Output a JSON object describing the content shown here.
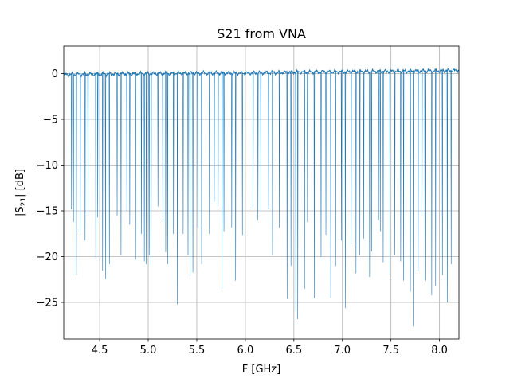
{
  "chart_data": {
    "type": "line",
    "title": "S21 from VNA",
    "xlabel": "F [GHz]",
    "ylabel_parts": {
      "before": "|S",
      "sub": "21",
      "after": "| [dB]"
    },
    "xlim": [
      4.13,
      8.2
    ],
    "ylim": [
      -29.0,
      3.0
    ],
    "x_ticks": [
      4.5,
      5.0,
      5.5,
      6.0,
      6.5,
      7.0,
      7.5,
      8.0
    ],
    "x_tick_labels": [
      "4.5",
      "5.0",
      "5.5",
      "6.0",
      "6.5",
      "7.0",
      "7.5",
      "8.0"
    ],
    "y_ticks": [
      0,
      -5,
      -10,
      -15,
      -20,
      -25
    ],
    "y_tick_labels": [
      "0",
      "−5",
      "−10",
      "−15",
      "−20",
      "−25"
    ],
    "grid": true,
    "line_color": "#1f77b4",
    "baseline_db": {
      "x": [
        4.13,
        4.5,
        5.0,
        5.5,
        6.0,
        6.5,
        7.0,
        7.5,
        8.0,
        8.2
      ],
      "y": [
        -0.1,
        -0.05,
        0.0,
        0.05,
        0.05,
        0.15,
        0.2,
        0.25,
        0.3,
        0.35
      ]
    },
    "resonances": [
      {
        "f": 4.21,
        "depth": -14.8
      },
      {
        "f": 4.23,
        "depth": -16.2
      },
      {
        "f": 4.26,
        "depth": -22.0
      },
      {
        "f": 4.3,
        "depth": -17.3
      },
      {
        "f": 4.35,
        "depth": -18.2
      },
      {
        "f": 4.38,
        "depth": -15.5
      },
      {
        "f": 4.46,
        "depth": -20.2
      },
      {
        "f": 4.48,
        "depth": -15.7
      },
      {
        "f": 4.53,
        "depth": -21.5
      },
      {
        "f": 4.56,
        "depth": -22.4
      },
      {
        "f": 4.6,
        "depth": -20.8
      },
      {
        "f": 4.68,
        "depth": -15.5
      },
      {
        "f": 4.72,
        "depth": -19.8
      },
      {
        "f": 4.78,
        "depth": -15.0
      },
      {
        "f": 4.81,
        "depth": -16.5
      },
      {
        "f": 4.87,
        "depth": -20.3
      },
      {
        "f": 4.93,
        "depth": -17.5
      },
      {
        "f": 4.96,
        "depth": -20.5
      },
      {
        "f": 4.98,
        "depth": -20.8
      },
      {
        "f": 5.01,
        "depth": -19.8
      },
      {
        "f": 5.03,
        "depth": -21.0
      },
      {
        "f": 5.1,
        "depth": -14.5
      },
      {
        "f": 5.15,
        "depth": -16.2
      },
      {
        "f": 5.18,
        "depth": -19.5
      },
      {
        "f": 5.2,
        "depth": -20.8
      },
      {
        "f": 5.26,
        "depth": -17.5
      },
      {
        "f": 5.3,
        "depth": -25.2
      },
      {
        "f": 5.36,
        "depth": -17.5
      },
      {
        "f": 5.41,
        "depth": -19.8
      },
      {
        "f": 5.43,
        "depth": -22.1
      },
      {
        "f": 5.46,
        "depth": -21.7
      },
      {
        "f": 5.51,
        "depth": -16.8
      },
      {
        "f": 5.55,
        "depth": -20.8
      },
      {
        "f": 5.63,
        "depth": -17.5
      },
      {
        "f": 5.68,
        "depth": -14.0
      },
      {
        "f": 5.72,
        "depth": -14.5
      },
      {
        "f": 5.76,
        "depth": -23.5
      },
      {
        "f": 5.78,
        "depth": -17.2
      },
      {
        "f": 5.86,
        "depth": -16.8
      },
      {
        "f": 5.9,
        "depth": -22.6
      },
      {
        "f": 5.97,
        "depth": -17.6
      },
      {
        "f": 6.08,
        "depth": -14.8
      },
      {
        "f": 6.13,
        "depth": -16.0
      },
      {
        "f": 6.16,
        "depth": -15.2
      },
      {
        "f": 6.24,
        "depth": -14.8
      },
      {
        "f": 6.28,
        "depth": -19.8
      },
      {
        "f": 6.35,
        "depth": -16.8
      },
      {
        "f": 6.43,
        "depth": -24.6
      },
      {
        "f": 6.47,
        "depth": -21.0
      },
      {
        "f": 6.52,
        "depth": -26.0
      },
      {
        "f": 6.54,
        "depth": -26.8
      },
      {
        "f": 6.61,
        "depth": -23.5
      },
      {
        "f": 6.64,
        "depth": -16.2
      },
      {
        "f": 6.71,
        "depth": -24.5
      },
      {
        "f": 6.78,
        "depth": -20.0
      },
      {
        "f": 6.83,
        "depth": -17.6
      },
      {
        "f": 6.88,
        "depth": -24.5
      },
      {
        "f": 6.93,
        "depth": -21.0
      },
      {
        "f": 6.99,
        "depth": -18.2
      },
      {
        "f": 7.03,
        "depth": -25.6
      },
      {
        "f": 7.09,
        "depth": -18.6
      },
      {
        "f": 7.14,
        "depth": -21.8
      },
      {
        "f": 7.18,
        "depth": -19.8
      },
      {
        "f": 7.22,
        "depth": -18.0
      },
      {
        "f": 7.28,
        "depth": -22.2
      },
      {
        "f": 7.3,
        "depth": -19.4
      },
      {
        "f": 7.37,
        "depth": -16.0
      },
      {
        "f": 7.39,
        "depth": -17.2
      },
      {
        "f": 7.42,
        "depth": -20.6
      },
      {
        "f": 7.49,
        "depth": -22.0
      },
      {
        "f": 7.54,
        "depth": -19.8
      },
      {
        "f": 7.6,
        "depth": -20.5
      },
      {
        "f": 7.63,
        "depth": -22.6
      },
      {
        "f": 7.7,
        "depth": -23.8
      },
      {
        "f": 7.73,
        "depth": -27.6
      },
      {
        "f": 7.78,
        "depth": -21.6
      },
      {
        "f": 7.82,
        "depth": -15.5
      },
      {
        "f": 7.85,
        "depth": -22.6
      },
      {
        "f": 7.92,
        "depth": -24.2
      },
      {
        "f": 7.96,
        "depth": -23.2
      },
      {
        "f": 8.03,
        "depth": -22.0
      },
      {
        "f": 8.08,
        "depth": -25.0
      },
      {
        "f": 8.12,
        "depth": -20.8
      }
    ]
  }
}
